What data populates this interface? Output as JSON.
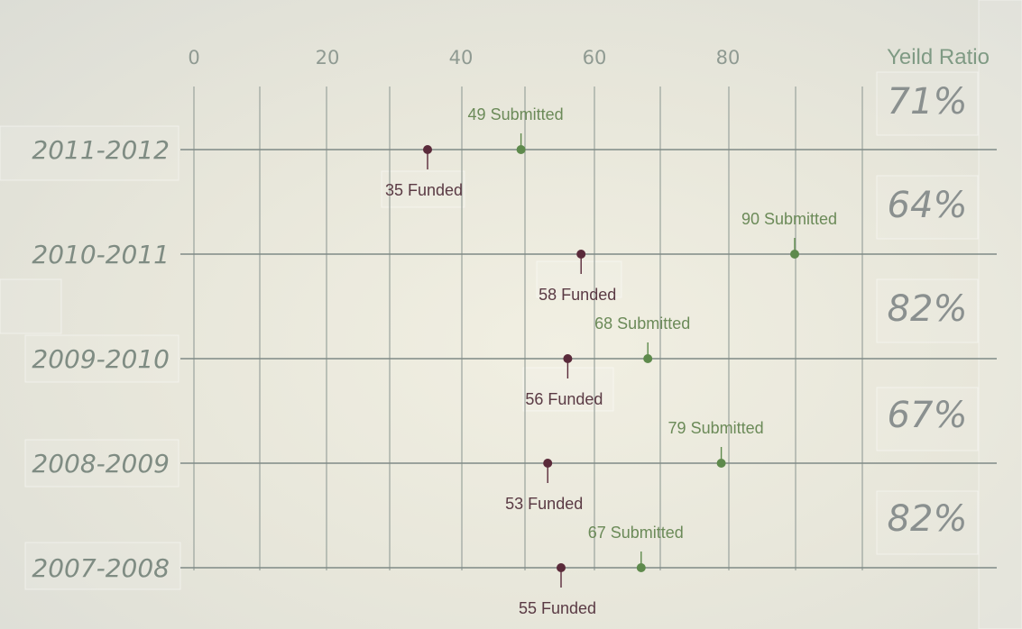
{
  "chart_data": {
    "type": "scatter",
    "x_ticks": [
      "0",
      "20",
      "40",
      "60",
      "80"
    ],
    "xlim": [
      0,
      120
    ],
    "ratio_header": "Yeild Ratio",
    "categories": [
      "2011-2012",
      "2010-2011",
      "2009-2010",
      "2008-2009",
      "2007-2008"
    ],
    "series": [
      {
        "name": "Submitted",
        "color": "#5e8a4c",
        "values": [
          49,
          90,
          68,
          79,
          67
        ],
        "labels": [
          "49 Submitted",
          "90 Submitted",
          "68 Submitted",
          "79 Submitted",
          "67 Submitted"
        ]
      },
      {
        "name": "Funded",
        "color": "#5a2a3a",
        "values": [
          35,
          58,
          56,
          53,
          55
        ],
        "labels": [
          "35 Funded",
          "58 Funded",
          "56 Funded",
          "53 Funded",
          "55 Funded"
        ]
      }
    ],
    "yield_ratios": [
      "71%",
      "64%",
      "82%",
      "67%",
      "82%"
    ],
    "grid": true
  }
}
